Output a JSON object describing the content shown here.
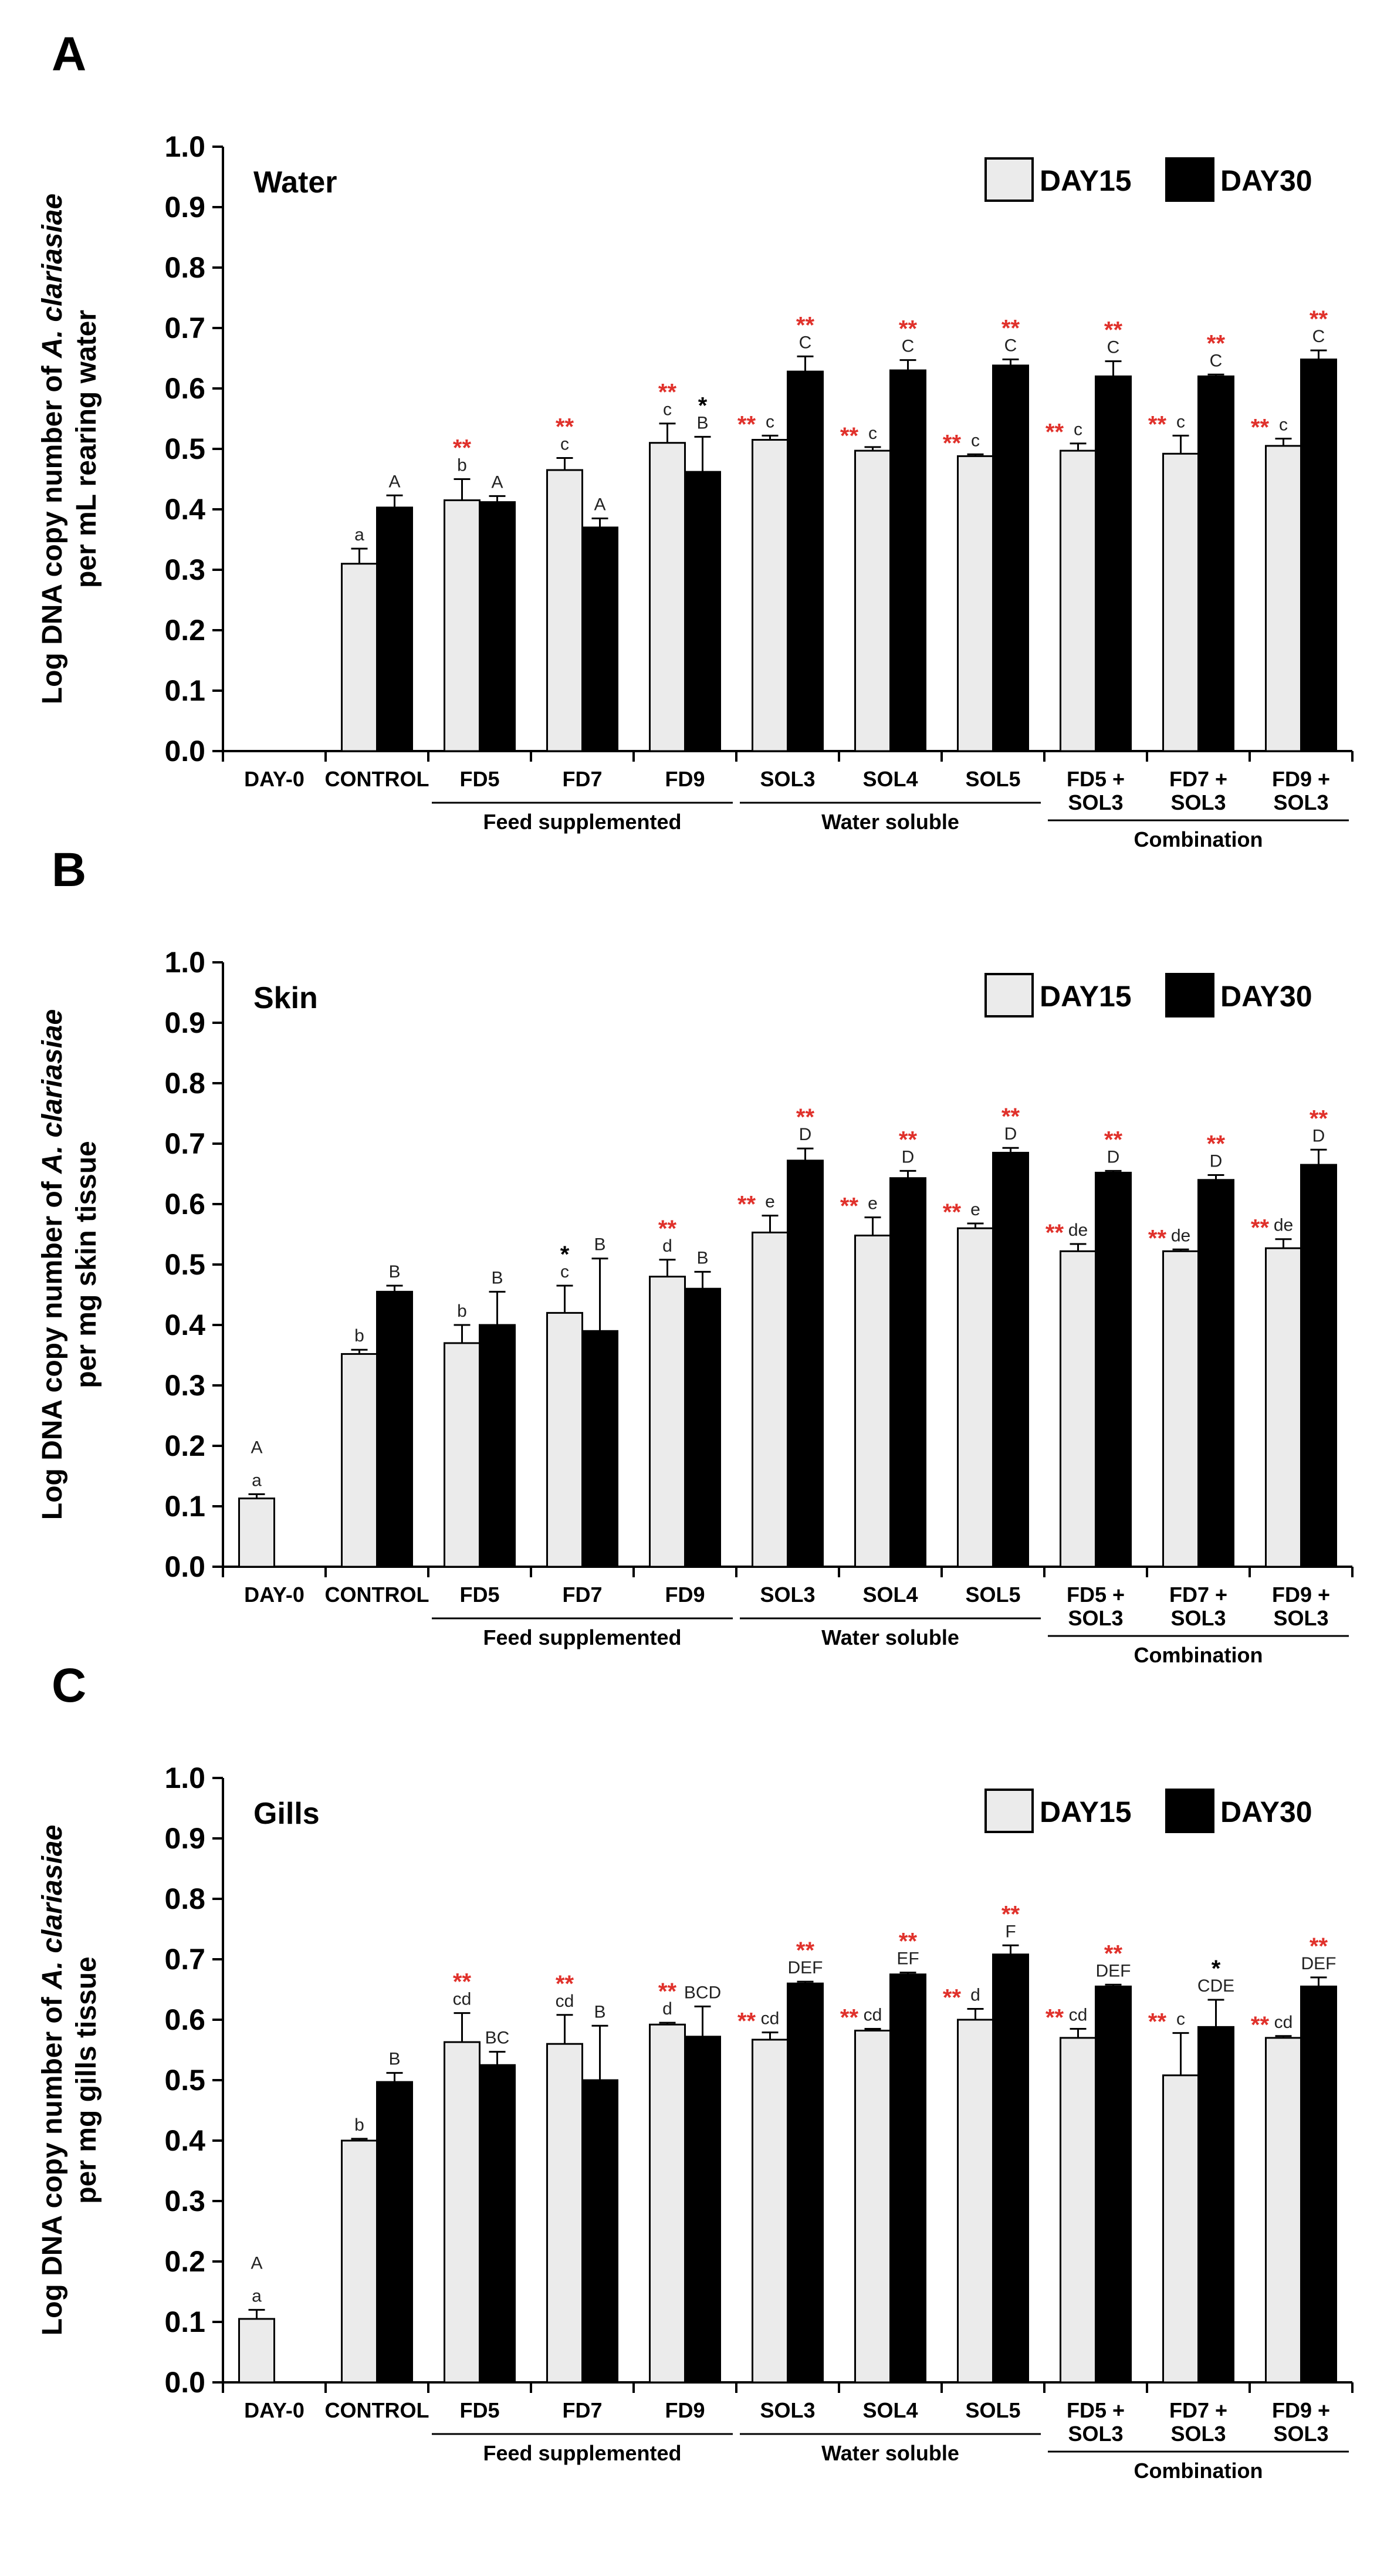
{
  "legend": {
    "day15": "DAY15",
    "day30": "DAY30"
  },
  "colors": {
    "day15": "#ebebeb",
    "day30": "#000000",
    "significance": "#e0312b"
  },
  "groups": [
    {
      "label": "Feed supplemented",
      "from": 2,
      "to": 4
    },
    {
      "label": "Water soluble",
      "from": 5,
      "to": 7
    },
    {
      "label": "Combination",
      "from": 8,
      "to": 10
    }
  ],
  "chart_data": [
    {
      "type": "bar",
      "panel_letter": "A",
      "title": "Water",
      "ylabel_lines": [
        [
          "Log DNA copy number of ",
          "A. clariasiae",
          ""
        ],
        [
          "per mL rearing water",
          "",
          ""
        ]
      ],
      "ylim": [
        0,
        1.0
      ],
      "yticks": [
        "0.0",
        "0.1",
        "0.2",
        "0.3",
        "0.4",
        "0.5",
        "0.6",
        "0.7",
        "0.8",
        "0.9",
        "1.0"
      ],
      "categories": [
        [
          "DAY-0"
        ],
        [
          "CONTROL"
        ],
        [
          "FD5"
        ],
        [
          "FD7"
        ],
        [
          "FD9"
        ],
        [
          "SOL3"
        ],
        [
          "SOL4"
        ],
        [
          "SOL5"
        ],
        [
          "FD5 +",
          "SOL3"
        ],
        [
          "FD7 +",
          "SOL3"
        ],
        [
          "FD9 +",
          "SOL3"
        ]
      ],
      "series": [
        {
          "name": "DAY15",
          "values": [
            null,
            0.31,
            0.415,
            0.465,
            0.51,
            0.515,
            0.497,
            0.488,
            0.497,
            0.492,
            0.505
          ],
          "errors": [
            0,
            0.025,
            0.035,
            0.02,
            0.032,
            0.007,
            0.006,
            0.003,
            0.012,
            0.03,
            0.012
          ],
          "letters": [
            "",
            "a",
            "b",
            "c",
            "c",
            "c",
            "c",
            "c",
            "c",
            "c",
            "c"
          ],
          "stars": [
            "",
            "",
            "red",
            "red",
            "red",
            "red",
            "red",
            "red",
            "red",
            "red",
            "red"
          ]
        },
        {
          "name": "DAY30",
          "values": [
            null,
            0.403,
            0.412,
            0.37,
            0.462,
            0.628,
            0.63,
            0.638,
            0.62,
            0.62,
            0.648
          ],
          "errors": [
            0,
            0.02,
            0.01,
            0.015,
            0.058,
            0.025,
            0.017,
            0.01,
            0.025,
            0.003,
            0.015
          ],
          "letters": [
            "",
            "A",
            "A",
            "A",
            "B",
            "C",
            "C",
            "C",
            "C",
            "C",
            "C"
          ],
          "stars": [
            "",
            "",
            "",
            "",
            "black",
            "red",
            "red",
            "red",
            "red",
            "red",
            "red"
          ]
        }
      ]
    },
    {
      "type": "bar",
      "panel_letter": "B",
      "title": "Skin",
      "ylabel_lines": [
        [
          "Log DNA copy number of ",
          "A. clariasiae",
          ""
        ],
        [
          "per mg skin tissue",
          "",
          ""
        ]
      ],
      "ylim": [
        0,
        1.0
      ],
      "yticks": [
        "0.0",
        "0.1",
        "0.2",
        "0.3",
        "0.4",
        "0.5",
        "0.6",
        "0.7",
        "0.8",
        "0.9",
        "1.0"
      ],
      "categories": [
        [
          "DAY-0"
        ],
        [
          "CONTROL"
        ],
        [
          "FD5"
        ],
        [
          "FD7"
        ],
        [
          "FD9"
        ],
        [
          "SOL3"
        ],
        [
          "SOL4"
        ],
        [
          "SOL5"
        ],
        [
          "FD5 +",
          "SOL3"
        ],
        [
          "FD7 +",
          "SOL3"
        ],
        [
          "FD9 +",
          "SOL3"
        ]
      ],
      "series": [
        {
          "name": "DAY15",
          "values": [
            0.113,
            0.352,
            0.37,
            0.42,
            0.48,
            0.553,
            0.548,
            0.56,
            0.522,
            0.522,
            0.527
          ],
          "errors": [
            0.007,
            0.007,
            0.03,
            0.045,
            0.028,
            0.028,
            0.03,
            0.008,
            0.012,
            0.003,
            0.015
          ],
          "letters": [
            "a",
            "b",
            "b",
            "c",
            "d",
            "e",
            "e",
            "e",
            "de",
            "de",
            "de"
          ],
          "stars": [
            "",
            "",
            "",
            "black",
            "red",
            "red",
            "red",
            "red",
            "red",
            "red",
            "red"
          ]
        },
        {
          "name": "DAY30",
          "values": [
            null,
            0.455,
            0.4,
            0.39,
            0.46,
            0.672,
            0.643,
            0.685,
            0.652,
            0.64,
            0.665
          ],
          "errors": [
            0,
            0.01,
            0.055,
            0.12,
            0.028,
            0.02,
            0.012,
            0.008,
            0.003,
            0.008,
            0.025
          ],
          "letters": [
            "A",
            "B",
            "B",
            "B",
            "B",
            "D",
            "D",
            "D",
            "D",
            "D",
            "D"
          ],
          "stars": [
            "",
            "",
            "",
            "",
            "",
            "red",
            "red",
            "red",
            "red",
            "red",
            "red"
          ]
        }
      ]
    },
    {
      "type": "bar",
      "panel_letter": "C",
      "title": "Gills",
      "ylabel_lines": [
        [
          "Log DNA copy number of ",
          "A. clariasiae",
          ""
        ],
        [
          "per mg gills tissue",
          "",
          ""
        ]
      ],
      "ylim": [
        0,
        1.0
      ],
      "yticks": [
        "0.0",
        "0.1",
        "0.2",
        "0.3",
        "0.4",
        "0.5",
        "0.6",
        "0.7",
        "0.8",
        "0.9",
        "1.0"
      ],
      "categories": [
        [
          "DAY-0"
        ],
        [
          "CONTROL"
        ],
        [
          "FD5"
        ],
        [
          "FD7"
        ],
        [
          "FD9"
        ],
        [
          "SOL3"
        ],
        [
          "SOL4"
        ],
        [
          "SOL5"
        ],
        [
          "FD5 +",
          "SOL3"
        ],
        [
          "FD7 +",
          "SOL3"
        ],
        [
          "FD9 +",
          "SOL3"
        ]
      ],
      "series": [
        {
          "name": "DAY15",
          "values": [
            0.105,
            0.4,
            0.563,
            0.56,
            0.592,
            0.567,
            0.582,
            0.6,
            0.57,
            0.508,
            0.57
          ],
          "errors": [
            0.015,
            0.003,
            0.048,
            0.048,
            0.003,
            0.012,
            0.003,
            0.018,
            0.015,
            0.07,
            0.003
          ],
          "letters": [
            "a",
            "b",
            "cd",
            "cd",
            "d",
            "cd",
            "cd",
            "d",
            "cd",
            "c",
            "cd"
          ],
          "stars": [
            "",
            "",
            "red",
            "red",
            "red",
            "red",
            "red",
            "red",
            "red",
            "red",
            "red"
          ]
        },
        {
          "name": "DAY30",
          "values": [
            null,
            0.497,
            0.525,
            0.5,
            0.572,
            0.66,
            0.675,
            0.708,
            0.655,
            0.588,
            0.655
          ],
          "errors": [
            0,
            0.015,
            0.022,
            0.09,
            0.05,
            0.003,
            0.003,
            0.015,
            0.003,
            0.045,
            0.015
          ],
          "letters": [
            "A",
            "B",
            "BC",
            "B",
            "BCD",
            "DEF",
            "EF",
            "F",
            "DEF",
            "CDE",
            "DEF"
          ],
          "stars": [
            "",
            "",
            "",
            "",
            "",
            "red",
            "red",
            "red",
            "red",
            "black",
            "red"
          ]
        }
      ]
    }
  ]
}
